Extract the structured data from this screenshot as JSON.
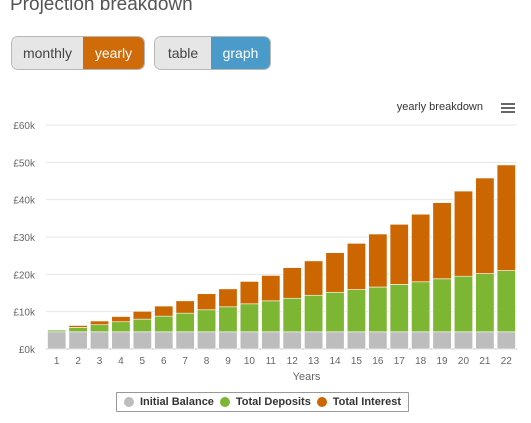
{
  "page": {
    "title": "Projection breakdown"
  },
  "period_toggle": {
    "options": [
      "monthly",
      "yearly"
    ],
    "selected": "yearly"
  },
  "view_toggle": {
    "options": [
      "table",
      "graph"
    ],
    "selected": "graph"
  },
  "chart_menu_icon": "menu-icon",
  "colors": {
    "initial": "#bdbdbd",
    "deposits": "#7cb632",
    "interest": "#cc6600",
    "accent_orange": "#d06b09",
    "accent_blue": "#4a9bc9"
  },
  "chart_data": {
    "type": "bar",
    "stacked": true,
    "title": "",
    "subtitle": "yearly breakdown",
    "xlabel": "Years",
    "ylabel": "",
    "ylim": [
      0,
      60000
    ],
    "y_ticks": [
      0,
      10000,
      20000,
      30000,
      40000,
      50000,
      60000
    ],
    "y_tick_labels": [
      "£0k",
      "£10k",
      "£20k",
      "£30k",
      "£40k",
      "£50k",
      "£60k"
    ],
    "grid": true,
    "legend_position": "bottom",
    "categories": [
      "1",
      "2",
      "3",
      "4",
      "5",
      "6",
      "7",
      "8",
      "9",
      "10",
      "11",
      "12",
      "13",
      "14",
      "15",
      "16",
      "17",
      "18",
      "19",
      "20",
      "21",
      "22"
    ],
    "series": [
      {
        "name": "Initial Balance",
        "values": [
          4600,
          4600,
          4600,
          4600,
          4600,
          4600,
          4600,
          4600,
          4600,
          4600,
          4600,
          4600,
          4600,
          4600,
          4600,
          4600,
          4600,
          4600,
          4600,
          4600,
          4600,
          4600
        ]
      },
      {
        "name": "Total Deposits",
        "values": [
          500,
          1200,
          1900,
          2700,
          3400,
          4200,
          5000,
          5900,
          6700,
          7500,
          8300,
          9000,
          9800,
          10600,
          11300,
          12000,
          12700,
          13400,
          14200,
          14900,
          15600,
          16400
        ]
      },
      {
        "name": "Total Interest",
        "values": [
          100,
          500,
          1000,
          1400,
          2100,
          2700,
          3300,
          4300,
          4800,
          6000,
          6800,
          8200,
          9200,
          10600,
          12400,
          14200,
          16100,
          18100,
          20400,
          22800,
          25600,
          28300
        ]
      }
    ]
  }
}
